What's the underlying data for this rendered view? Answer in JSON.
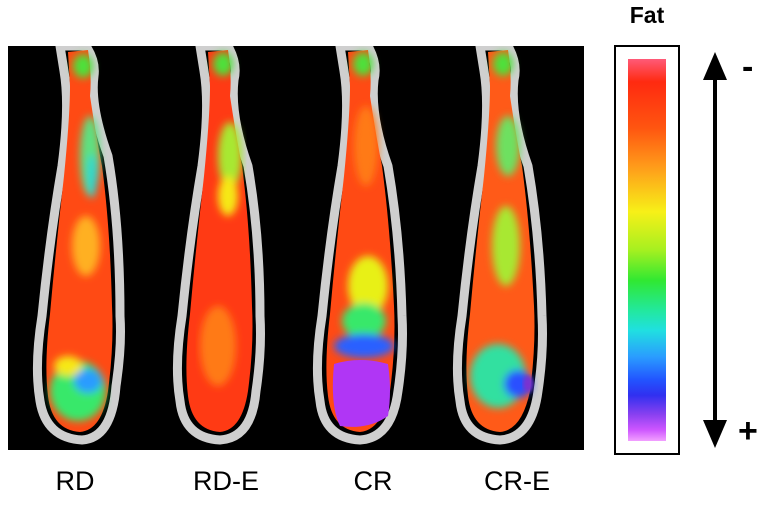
{
  "panels": [
    {
      "label": "RD"
    },
    {
      "label": "RD-E"
    },
    {
      "label": "CR"
    },
    {
      "label": "CR-E"
    }
  ],
  "legend": {
    "title": "Fat",
    "low_label": "-",
    "high_label": "+"
  }
}
